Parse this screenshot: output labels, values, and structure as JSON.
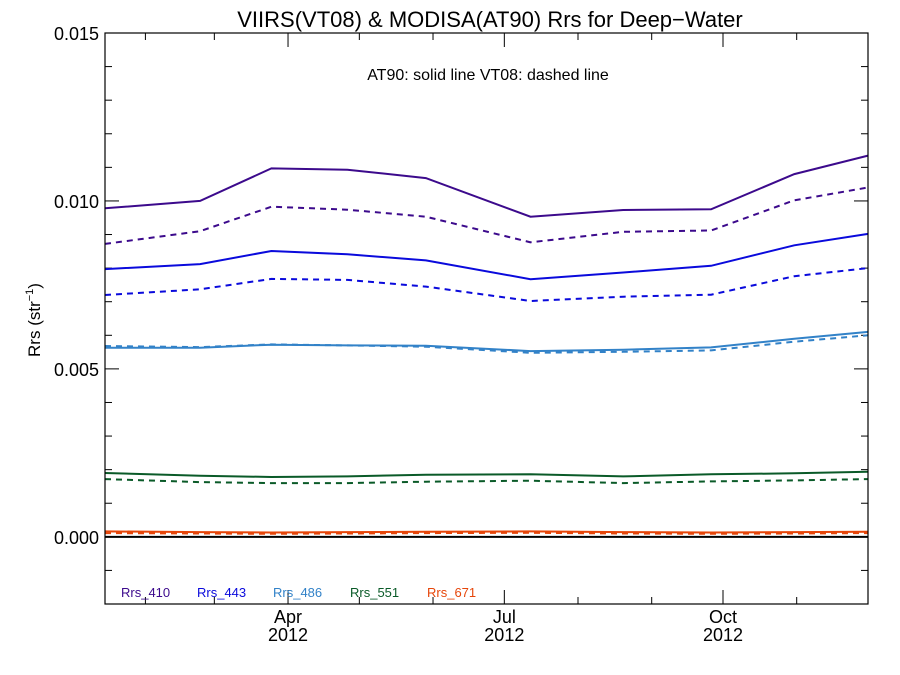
{
  "chart_data": {
    "type": "line",
    "title": "VIIRS(VT08) & MODISA(AT90)  Rrs for Deep−Water",
    "annotation": "AT90: solid line   VT08: dashed line",
    "ylabel": {
      "main": "Rrs (str",
      "sup": "−1",
      "close": ")"
    },
    "ylim": [
      -0.002,
      0.015
    ],
    "yticks": [
      0.0,
      0.005,
      0.01,
      0.015
    ],
    "ytick_labels": [
      "0.000",
      "0.005",
      "0.010",
      "0.015"
    ],
    "xaxis": {
      "type": "time",
      "start": "2012-01-15",
      "end": "2012-12-01",
      "major_ticks": [
        {
          "date": "2012-04-01",
          "label": "Apr",
          "year": "2012"
        },
        {
          "date": "2012-07-01",
          "label": "Jul",
          "year": "2012"
        },
        {
          "date": "2012-10-01",
          "label": "Oct",
          "year": "2012"
        }
      ],
      "minor_ticks": [
        "2012-02-01",
        "2012-03-01",
        "2012-05-01",
        "2012-06-01",
        "2012-08-01",
        "2012-09-01",
        "2012-11-01"
      ]
    },
    "dates": [
      "2012-01-15",
      "2012-02-24",
      "2012-03-25",
      "2012-04-26",
      "2012-05-29",
      "2012-07-12",
      "2012-08-20",
      "2012-09-26",
      "2012-10-31",
      "2012-12-01"
    ],
    "series": [
      {
        "name": "Rrs_410",
        "color": "#3c0a8c",
        "solid": [
          0.00978,
          0.01,
          0.01097,
          0.01093,
          0.01068,
          0.00953,
          0.00973,
          0.00975,
          0.0108,
          0.01135
        ],
        "dashed": [
          0.00872,
          0.0091,
          0.00983,
          0.00974,
          0.00953,
          0.00877,
          0.00908,
          0.00912,
          0.01002,
          0.0104
        ]
      },
      {
        "name": "Rrs_443",
        "color": "#0a0adc",
        "solid": [
          0.00797,
          0.00812,
          0.00851,
          0.00841,
          0.00823,
          0.00767,
          0.00787,
          0.00807,
          0.00868,
          0.00902
        ],
        "dashed": [
          0.0072,
          0.00737,
          0.00768,
          0.00765,
          0.00745,
          0.00702,
          0.00715,
          0.00721,
          0.00776,
          0.008
        ]
      },
      {
        "name": "Rrs_486",
        "color": "#3282c8",
        "solid": [
          0.00563,
          0.00563,
          0.00572,
          0.0057,
          0.00569,
          0.00553,
          0.00557,
          0.00564,
          0.0059,
          0.0061
        ],
        "dashed": [
          0.00568,
          0.00565,
          0.00573,
          0.0057,
          0.00566,
          0.00548,
          0.00551,
          0.00555,
          0.00581,
          0.006
        ]
      },
      {
        "name": "Rrs_551",
        "color": "#0a5a28",
        "solid": [
          0.0019,
          0.00182,
          0.00178,
          0.0018,
          0.00185,
          0.00186,
          0.0018,
          0.00186,
          0.00189,
          0.00194
        ],
        "dashed": [
          0.00172,
          0.00163,
          0.0016,
          0.0016,
          0.00164,
          0.00167,
          0.0016,
          0.00165,
          0.00168,
          0.00172
        ]
      },
      {
        "name": "Rrs_671",
        "color": "#e6460a",
        "solid": [
          0.00016,
          0.00014,
          0.00013,
          0.00014,
          0.00015,
          0.00016,
          0.00014,
          0.00013,
          0.00014,
          0.00015
        ],
        "dashed": [
          0.00011,
          0.0001,
          9e-05,
          0.0001,
          0.00011,
          0.00012,
          0.0001,
          9e-05,
          0.0001,
          0.00011
        ]
      }
    ],
    "zero_line": true,
    "legend_position": "bottom-left",
    "grid": false
  }
}
